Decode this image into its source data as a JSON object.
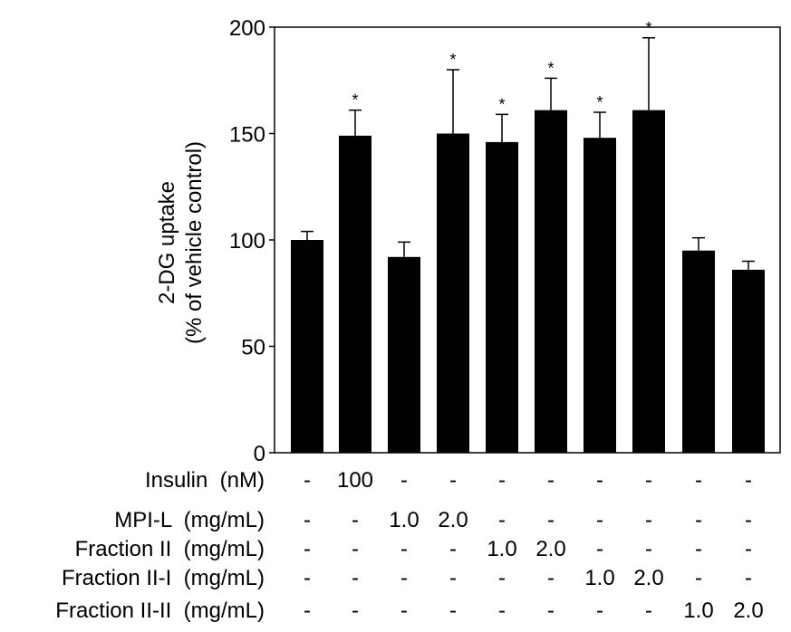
{
  "chart_data": {
    "type": "bar",
    "ylabel_lines": [
      "2-DG uptake",
      "(% of vehicle control)"
    ],
    "ylim": [
      0,
      200
    ],
    "yticks": [
      0,
      50,
      100,
      150,
      200
    ],
    "values": [
      100,
      149,
      92,
      150,
      146,
      161,
      148,
      161,
      95,
      86
    ],
    "errors": [
      4,
      12,
      7,
      30,
      13,
      15,
      12,
      34,
      6,
      4
    ],
    "significance": [
      "",
      "*",
      "",
      "*",
      "*",
      "*",
      "*",
      "*",
      "",
      ""
    ],
    "bar_color": "#000000",
    "treatment_table": [
      {
        "label": "Insulin  (nM)",
        "cells": [
          "-",
          "100",
          "-",
          "-",
          "-",
          "-",
          "-",
          "-",
          "-",
          "-"
        ]
      },
      {
        "label": "MPI-L  (mg/mL)",
        "cells": [
          "-",
          "-",
          "1.0",
          "2.0",
          "-",
          "-",
          "-",
          "-",
          "-",
          "-"
        ]
      },
      {
        "label": "Fraction II  (mg/mL)",
        "cells": [
          "-",
          "-",
          "-",
          "-",
          "1.0",
          "2.0",
          "-",
          "-",
          "-",
          "-"
        ]
      },
      {
        "label": "Fraction II-I  (mg/mL)",
        "cells": [
          "-",
          "-",
          "-",
          "-",
          "-",
          "-",
          "1.0",
          "2.0",
          "-",
          "-"
        ]
      },
      {
        "label": "Fraction II-II  (mg/mL)",
        "cells": [
          "-",
          "-",
          "-",
          "-",
          "-",
          "-",
          "-",
          "-",
          "1.0",
          "2.0"
        ]
      }
    ]
  }
}
